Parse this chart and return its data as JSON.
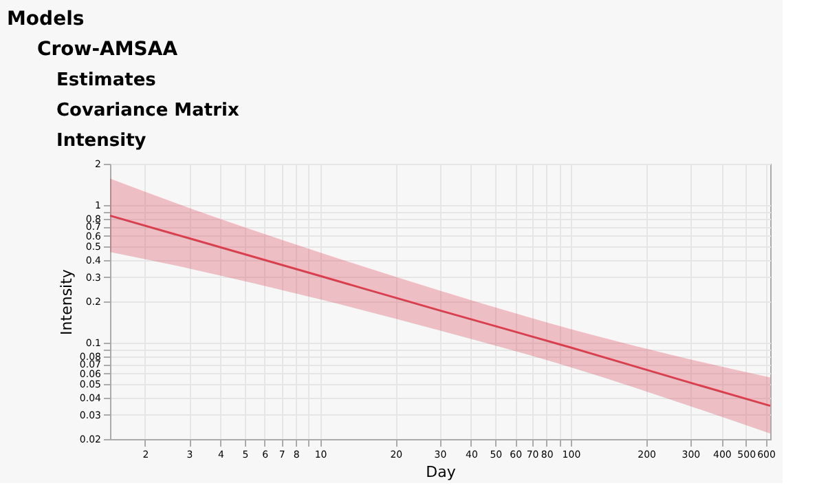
{
  "chart_data": {
    "type": "line",
    "title": "Models",
    "annotations": [
      "Crow-AMSAA",
      "Estimates",
      "Covariance Matrix",
      "Intensity"
    ],
    "xlabel": "Day",
    "ylabel": "Intensity",
    "log": "xy",
    "grid": true,
    "series": [
      {
        "color": "#d8404f",
        "x": [
          1.45,
          3,
          10,
          30,
          100,
          300,
          625
        ],
        "values": [
          0.84,
          0.575,
          0.306,
          0.172,
          0.0925,
          0.0513,
          0.0349
        ],
        "lower": [
          0.457,
          0.347,
          0.207,
          0.123,
          0.0665,
          0.0347,
          0.0219
        ],
        "upper": [
          1.56,
          0.955,
          0.453,
          0.24,
          0.126,
          0.0759,
          0.056
        ]
      }
    ],
    "xlim": [
      1.45,
      625
    ],
    "xticks": [
      2,
      3,
      4,
      5,
      6,
      7,
      8,
      {
        "value": 9,
        "label": null
      },
      10,
      20,
      30,
      40,
      50,
      60,
      70,
      80,
      {
        "value": 90,
        "label": null
      },
      100,
      200,
      300,
      400,
      500,
      600
    ],
    "ylim": [
      0.02,
      2
    ],
    "yticks": [
      0.02,
      0.03,
      0.04,
      0.05,
      0.06,
      0.07,
      0.08,
      {
        "value": 0.09,
        "label": null
      },
      0.1,
      0.2,
      0.3,
      0.4,
      0.5,
      0.6,
      0.7,
      0.8,
      {
        "value": 0.9,
        "label": null
      },
      1,
      2
    ]
  }
}
